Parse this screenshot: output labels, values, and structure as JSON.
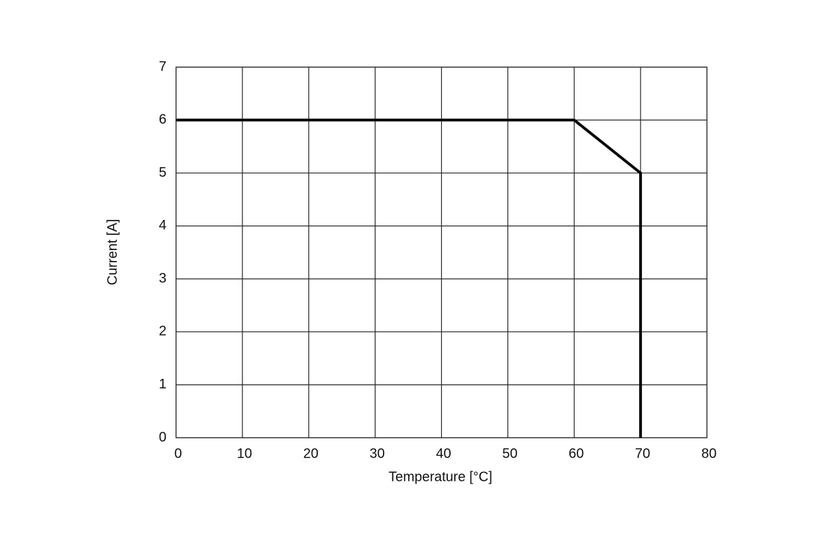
{
  "chart_data": {
    "type": "line",
    "xlabel": "Temperature [°C]",
    "ylabel": "Current [A]",
    "x": [
      0,
      60,
      70,
      70
    ],
    "values": [
      6,
      6,
      5,
      0
    ],
    "color": "#000000",
    "xlim": [
      0,
      80
    ],
    "xticks": [
      0,
      10,
      20,
      30,
      40,
      50,
      60,
      70,
      80
    ],
    "ylim": [
      0,
      7
    ],
    "yticks": [
      0,
      1,
      2,
      3,
      4,
      5,
      6,
      7
    ],
    "grid": true
  }
}
